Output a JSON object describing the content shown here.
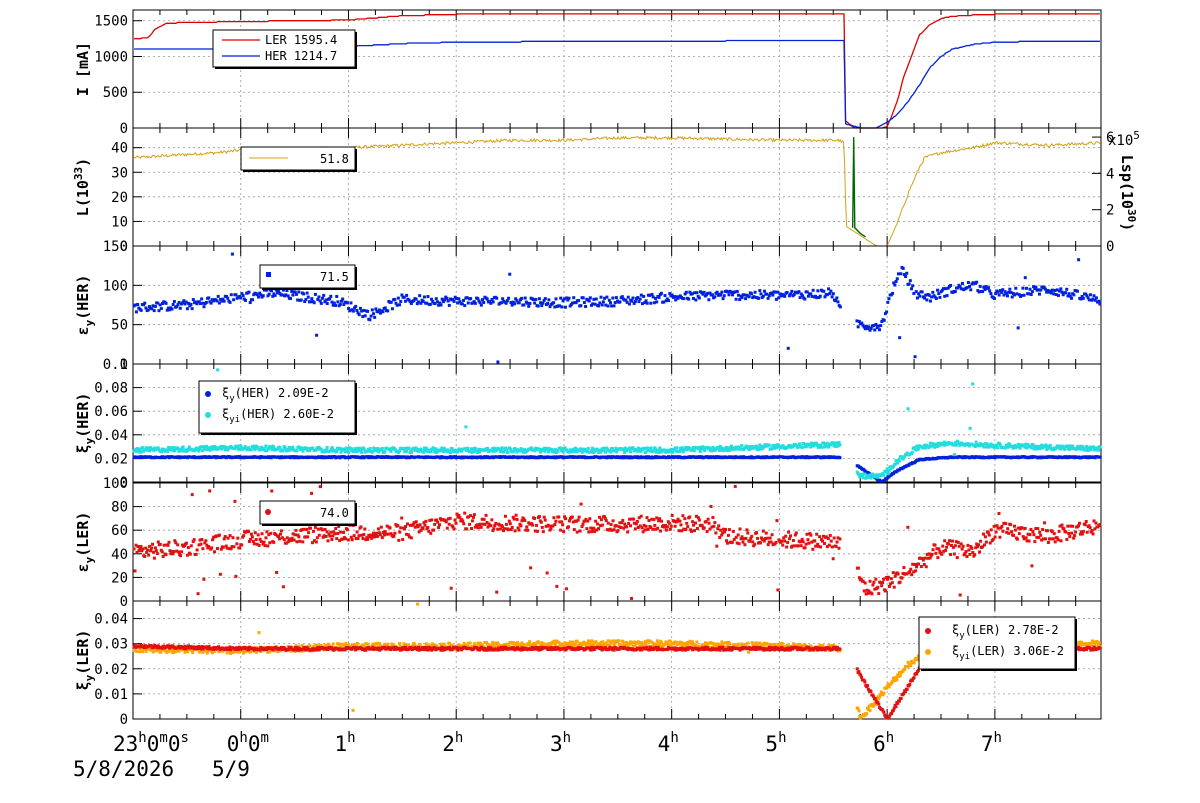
{
  "chart_data": [
    {
      "id": "current",
      "type": "line",
      "ylabel": "I [mA]",
      "ylim": [
        0,
        1650
      ],
      "yticks": [
        0,
        500,
        1000,
        1500
      ],
      "grid": true,
      "legend": [
        {
          "name": "LER",
          "value": "1595.4",
          "color": "#dd0000"
        },
        {
          "name": "HER",
          "value": "1214.7",
          "color": "#0022dd"
        }
      ],
      "series": [
        {
          "name": "LER",
          "color": "#dd0000",
          "x": [
            -0.95,
            -0.9,
            -0.85,
            -0.8,
            -0.7,
            -0.6,
            -0.5,
            -0.3,
            -0.1,
            0.1,
            0.3,
            0.6,
            1.0,
            1.5,
            2.0,
            2.5,
            3.0,
            3.5,
            4.0,
            4.5,
            5.0,
            5.5,
            5.6,
            5.61,
            5.7,
            5.85,
            5.95,
            6.0,
            6.05,
            6.1,
            6.15,
            6.2,
            6.25,
            6.3,
            6.4,
            6.5,
            6.6,
            6.8,
            7.0,
            7.5,
            8.0
          ],
          "y": [
            1250,
            1260,
            1270,
            1380,
            1460,
            1470,
            1475,
            1480,
            1485,
            1490,
            1495,
            1500,
            1510,
            1570,
            1590,
            1592,
            1594,
            1595,
            1595,
            1596,
            1596,
            1595,
            1595,
            100,
            0,
            0,
            0,
            20,
            200,
            400,
            700,
            900,
            1100,
            1300,
            1450,
            1530,
            1560,
            1580,
            1590,
            1595,
            1595
          ]
        },
        {
          "name": "HER",
          "color": "#0022dd",
          "x": [
            -0.95,
            -0.5,
            0.0,
            0.5,
            1.0,
            1.5,
            2.0,
            2.5,
            3.0,
            3.5,
            4.0,
            4.5,
            5.0,
            5.5,
            5.6,
            5.61,
            5.75,
            5.9,
            6.0,
            6.1,
            6.2,
            6.3,
            6.4,
            6.5,
            6.6,
            6.8,
            7.0,
            7.5,
            8.0
          ],
          "y": [
            1100,
            1105,
            1110,
            1120,
            1140,
            1180,
            1200,
            1205,
            1210,
            1212,
            1215,
            1218,
            1220,
            1220,
            1220,
            60,
            0,
            0,
            80,
            200,
            380,
            600,
            850,
            1000,
            1100,
            1170,
            1200,
            1214,
            1210
          ]
        }
      ]
    },
    {
      "id": "luminosity",
      "type": "line",
      "ylabel": "L(10^33)",
      "ylim": [
        0,
        48
      ],
      "yticks": [
        0,
        10,
        20,
        30,
        40
      ],
      "y2label": "Lsp(10^30)",
      "y2lim": [
        0,
        6.5
      ],
      "y2ticks": [
        0,
        2,
        4,
        6
      ],
      "y2multiplier": "x10^5",
      "grid": true,
      "legend_value": "51.8",
      "series": [
        {
          "name": "L",
          "color": "#d4a017",
          "x": [
            -0.95,
            -0.6,
            -0.2,
            0.0,
            0.5,
            1.0,
            1.5,
            2.0,
            2.5,
            3.0,
            3.5,
            4.0,
            4.5,
            5.0,
            5.4,
            5.55,
            5.6,
            5.62,
            5.9,
            6.0,
            6.1,
            6.2,
            6.3,
            6.35,
            6.5,
            6.8,
            7.0,
            7.5,
            8.0
          ],
          "y": [
            36,
            37,
            38,
            39,
            39.5,
            40,
            41,
            42,
            43,
            43,
            44,
            44,
            43.5,
            43,
            43,
            43,
            42,
            8,
            0,
            0,
            10,
            22,
            32,
            36,
            38,
            40,
            42,
            41,
            42
          ]
        },
        {
          "name": "Lsp",
          "color": "#006600",
          "x": [
            5.68,
            5.69,
            5.7,
            5.75,
            5.8
          ],
          "y": [
            1,
            6,
            1,
            0.7,
            0.5
          ]
        }
      ]
    },
    {
      "id": "emit-her",
      "type": "scatter",
      "ylabel": "εy(HER)",
      "ylim": [
        0,
        150
      ],
      "yticks": [
        0,
        50,
        100
      ],
      "ytick_labels": [
        "0",
        "50",
        "100",
        "150"
      ],
      "grid": true,
      "legend_value": "71.5",
      "marker_color": "#0022dd",
      "trend": {
        "x": [
          -0.95,
          -0.5,
          0.0,
          0.3,
          0.6,
          0.9,
          1.2,
          1.5,
          2.0,
          2.5,
          3.0,
          3.5,
          4.0,
          4.5,
          5.0,
          5.5,
          5.6,
          5.85,
          5.95,
          6.05,
          6.15,
          6.25,
          6.4,
          6.6,
          6.8,
          7.0,
          7.5,
          8.0
        ],
        "y": [
          72,
          75,
          85,
          90,
          85,
          80,
          62,
          82,
          80,
          80,
          78,
          80,
          85,
          88,
          87,
          90,
          55,
          48,
          50,
          95,
          120,
          90,
          85,
          95,
          100,
          88,
          95,
          80
        ],
        "spread": 6
      }
    },
    {
      "id": "xi-her",
      "type": "scatter",
      "ylabel": "ξy(HER)",
      "ylim": [
        0,
        0.1
      ],
      "yticks": [
        0,
        0.02,
        0.04,
        0.06,
        0.08,
        0.1
      ],
      "ytick_labels": [
        "0",
        "0.02",
        "0.04",
        "0.06",
        "0.08",
        "0.1"
      ],
      "grid": true,
      "legend": [
        {
          "name": "ξy(HER)",
          "value": "2.09E-2",
          "color": "#0022dd"
        },
        {
          "name": "ξyi(HER)",
          "value": "2.60E-2",
          "color": "#22dddd"
        }
      ],
      "series": [
        {
          "name": "ξy(HER)",
          "color": "#0022dd",
          "x": [
            -0.95,
            0,
            1,
            2,
            3,
            4,
            5,
            5.6,
            5.95,
            6.1,
            6.3,
            6.6,
            7,
            8
          ],
          "y": [
            0.021,
            0.021,
            0.021,
            0.021,
            0.021,
            0.021,
            0.021,
            0.021,
            0.0,
            0.01,
            0.019,
            0.021,
            0.021,
            0.021
          ],
          "spread": 0.0005
        },
        {
          "name": "ξyi(HER)",
          "color": "#22dddd",
          "x": [
            -0.95,
            0,
            0.5,
            1,
            2,
            3,
            4,
            5,
            5.6,
            5.75,
            5.95,
            6.1,
            6.3,
            6.6,
            7,
            8
          ],
          "y": [
            0.027,
            0.029,
            0.028,
            0.027,
            0.027,
            0.027,
            0.027,
            0.03,
            0.032,
            0.005,
            0.005,
            0.018,
            0.03,
            0.033,
            0.031,
            0.028
          ],
          "spread": 0.002
        }
      ]
    },
    {
      "id": "emit-ler",
      "type": "scatter",
      "ylabel": "εy(LER)",
      "ylim": [
        0,
        100
      ],
      "yticks": [
        0,
        20,
        40,
        60,
        80
      ],
      "ytick_labels": [
        "0",
        "20",
        "40",
        "60",
        "80",
        "100"
      ],
      "grid": true,
      "legend_value": "74.0",
      "marker_color": "#e31010",
      "trend": {
        "x": [
          -0.95,
          -0.5,
          0.0,
          0.5,
          1.0,
          1.5,
          2.0,
          2.5,
          3.0,
          3.5,
          4.0,
          4.4,
          4.5,
          5.0,
          5.5,
          5.6,
          5.8,
          6.0,
          6.2,
          6.5,
          6.8,
          7.0,
          7.5,
          8.0
        ],
        "y": [
          42,
          45,
          52,
          55,
          58,
          58,
          68,
          66,
          65,
          65,
          66,
          65,
          55,
          52,
          50,
          47,
          10,
          15,
          25,
          45,
          42,
          60,
          55,
          65
        ],
        "spread": 7
      }
    },
    {
      "id": "xi-ler",
      "type": "scatter",
      "ylabel": "ξy(LER)",
      "ylim": [
        0,
        0.047
      ],
      "yticks": [
        0,
        0.01,
        0.02,
        0.03,
        0.04
      ],
      "ytick_labels": [
        "0",
        "0.01",
        "0.02",
        "0.03",
        "0.04"
      ],
      "grid": true,
      "legend": [
        {
          "name": "ξy(LER)",
          "value": "2.78E-2",
          "color": "#e31010"
        },
        {
          "name": "ξyi(LER)",
          "value": "3.06E-2",
          "color": "#ffa500"
        }
      ],
      "series": [
        {
          "name": "ξy(LER)",
          "color": "#e31010",
          "x": [
            -0.95,
            0,
            1,
            2,
            3,
            4,
            5,
            5.6,
            6.0,
            6.3,
            6.6,
            7,
            8
          ],
          "y": [
            0.029,
            0.028,
            0.028,
            0.028,
            0.028,
            0.028,
            0.028,
            0.028,
            0.0,
            0.02,
            0.028,
            0.028,
            0.028
          ],
          "spread": 0.0006
        },
        {
          "name": "ξyi(LER)",
          "color": "#ffa500",
          "x": [
            -0.95,
            0,
            0.5,
            1,
            2,
            3,
            4,
            5,
            5.6,
            5.75,
            5.95,
            6.2,
            6.5,
            7,
            8
          ],
          "y": [
            0.028,
            0.027,
            0.028,
            0.029,
            0.029,
            0.03,
            0.03,
            0.029,
            0.028,
            0.0,
            0.01,
            0.022,
            0.029,
            0.029,
            0.03
          ],
          "spread": 0.0012
        }
      ]
    }
  ],
  "time_axis": {
    "xlim": [
      -1.0,
      7.985
    ],
    "ticks": [
      {
        "x": -1,
        "main": "23",
        "sup": "h",
        "rest": "0",
        "sup2": "m",
        "rest2": "0",
        "sup3": "s"
      },
      {
        "x": 0,
        "main": "0",
        "sup": "h",
        "rest": "0",
        "sup2": "m"
      },
      {
        "x": 1,
        "main": "1",
        "sup": "h"
      },
      {
        "x": 2,
        "main": "2",
        "sup": "h"
      },
      {
        "x": 3,
        "main": "3",
        "sup": "h"
      },
      {
        "x": 4,
        "main": "4",
        "sup": "h"
      },
      {
        "x": 5,
        "main": "5",
        "sup": "h"
      },
      {
        "x": 6,
        "main": "6",
        "sup": "h"
      },
      {
        "x": 7,
        "main": "7",
        "sup": "h"
      }
    ],
    "date_start": "5/8/2026",
    "date_next": "5/9"
  }
}
